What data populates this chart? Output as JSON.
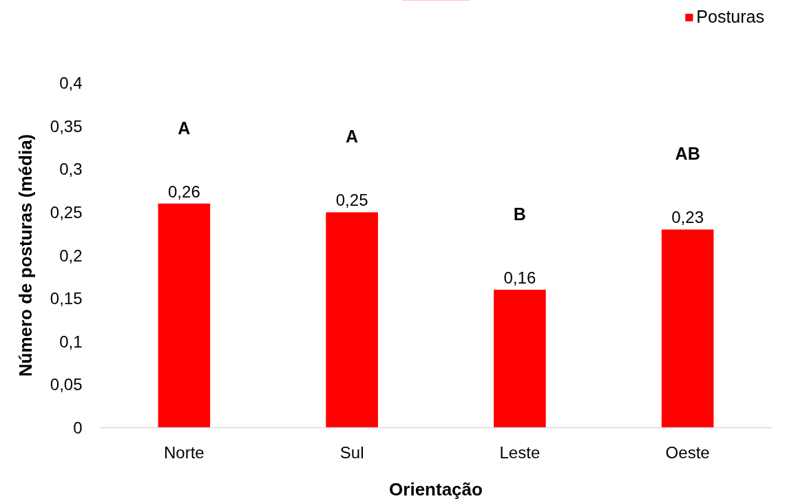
{
  "chart_data": {
    "type": "bar",
    "xlabel": "Orientação",
    "ylabel": "Número de posturas (média)",
    "categories": [
      "Norte",
      "Sul",
      "Leste",
      "Oeste"
    ],
    "series": [
      {
        "name": "Posturas",
        "color": "#ff0000",
        "values": [
          0.26,
          0.25,
          0.16,
          0.23
        ],
        "value_labels": [
          "0,26",
          "0,25",
          "0,16",
          "0,23"
        ]
      }
    ],
    "ylim": [
      0,
      0.4
    ],
    "yticks": [
      0,
      {
        "value": 0.05,
        "label": "0,05"
      },
      {
        "value": 0.1,
        "label": "0,1"
      },
      {
        "value": 0.15,
        "label": "0,15"
      },
      {
        "value": 0.2,
        "label": "0,2"
      },
      {
        "value": 0.25,
        "label": "0,25"
      },
      {
        "value": 0.3,
        "label": "0,3"
      },
      {
        "value": 0.35,
        "label": "0,35"
      },
      {
        "value": 0.4,
        "label": "0,4"
      }
    ],
    "annotations": [
      "A",
      "A",
      "B",
      "AB"
    ],
    "legend": "top right"
  }
}
